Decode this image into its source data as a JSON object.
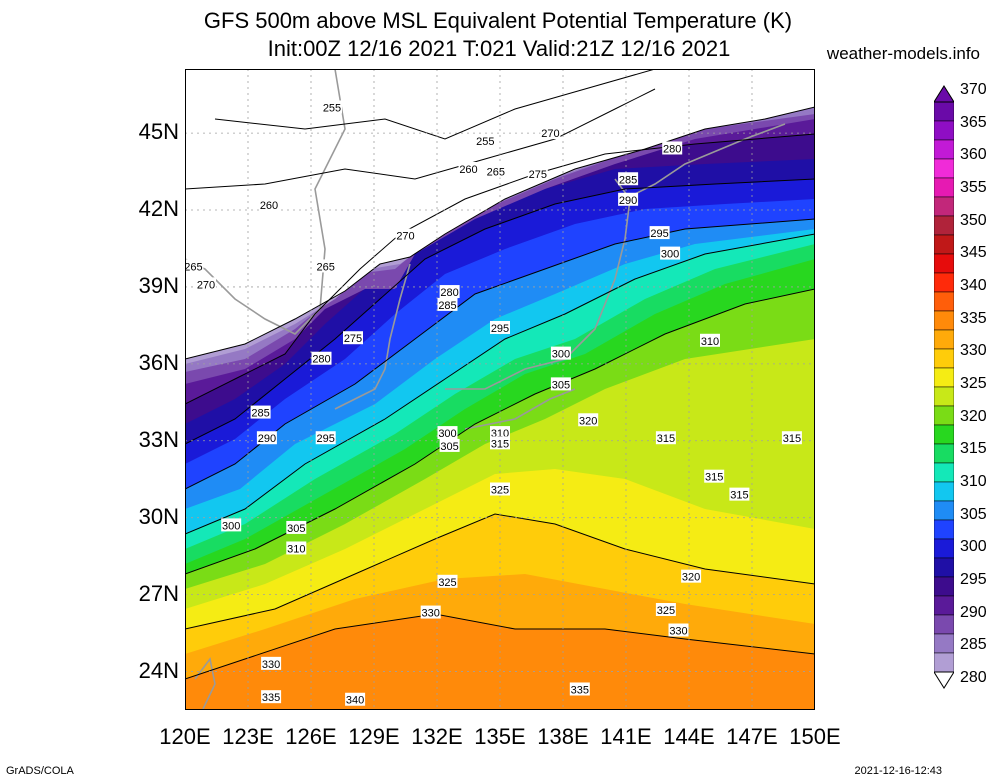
{
  "header": {
    "title_line1": "GFS 500m above MSL Equivalent Potential Temperature (K)",
    "title_line2": "Init:00Z 12/16 2021 T:021 Valid:21Z 12/16 2021",
    "site": "weather-models.info"
  },
  "map": {
    "lat_labels": [
      "45N",
      "42N",
      "39N",
      "36N",
      "33N",
      "30N",
      "27N",
      "24N"
    ],
    "lon_labels": [
      "120E",
      "123E",
      "126E",
      "129E",
      "132E",
      "135E",
      "138E",
      "141E",
      "144E",
      "147E",
      "150E"
    ],
    "lat_values": [
      45,
      42,
      39,
      36,
      33,
      30,
      27,
      24
    ],
    "lon_values": [
      120,
      123,
      126,
      129,
      132,
      135,
      138,
      141,
      144,
      147,
      150
    ],
    "lat_range": [
      22.5,
      47.5
    ],
    "lon_range": [
      120,
      150
    ],
    "contour_labels": [
      {
        "text": "255",
        "lon": 127.0,
        "lat": 46.0
      },
      {
        "text": "255",
        "lon": 134.3,
        "lat": 44.7
      },
      {
        "text": "260",
        "lon": 124.0,
        "lat": 42.2
      },
      {
        "text": "260",
        "lon": 133.5,
        "lat": 43.6
      },
      {
        "text": "265",
        "lon": 120.4,
        "lat": 39.8
      },
      {
        "text": "265",
        "lon": 126.7,
        "lat": 39.8
      },
      {
        "text": "265",
        "lon": 134.8,
        "lat": 43.5
      },
      {
        "text": "270",
        "lon": 121.0,
        "lat": 39.1
      },
      {
        "text": "270",
        "lon": 130.5,
        "lat": 41.0
      },
      {
        "text": "270",
        "lon": 137.4,
        "lat": 45.0
      },
      {
        "text": "275",
        "lon": 136.8,
        "lat": 43.4
      },
      {
        "text": "275",
        "lon": 128.0,
        "lat": 37.0
      },
      {
        "text": "280",
        "lon": 126.5,
        "lat": 36.2
      },
      {
        "text": "280",
        "lon": 132.6,
        "lat": 38.8
      },
      {
        "text": "280",
        "lon": 143.2,
        "lat": 44.4
      },
      {
        "text": "285",
        "lon": 132.5,
        "lat": 38.3
      },
      {
        "text": "285",
        "lon": 141.1,
        "lat": 43.2
      },
      {
        "text": "285",
        "lon": 123.6,
        "lat": 34.1
      },
      {
        "text": "290",
        "lon": 141.1,
        "lat": 42.4
      },
      {
        "text": "290",
        "lon": 123.9,
        "lat": 33.1
      },
      {
        "text": "295",
        "lon": 126.7,
        "lat": 33.1
      },
      {
        "text": "295",
        "lon": 135.0,
        "lat": 37.4
      },
      {
        "text": "295",
        "lon": 142.6,
        "lat": 41.1
      },
      {
        "text": "300",
        "lon": 137.9,
        "lat": 36.4
      },
      {
        "text": "300",
        "lon": 143.1,
        "lat": 40.3
      },
      {
        "text": "300",
        "lon": 132.5,
        "lat": 33.3
      },
      {
        "text": "300",
        "lon": 122.2,
        "lat": 29.7
      },
      {
        "text": "305",
        "lon": 132.6,
        "lat": 32.8
      },
      {
        "text": "305",
        "lon": 137.9,
        "lat": 35.2
      },
      {
        "text": "305",
        "lon": 125.3,
        "lat": 29.6
      },
      {
        "text": "310",
        "lon": 135.0,
        "lat": 33.3
      },
      {
        "text": "310",
        "lon": 145.0,
        "lat": 36.9
      },
      {
        "text": "310",
        "lon": 125.3,
        "lat": 28.8
      },
      {
        "text": "315",
        "lon": 135.0,
        "lat": 32.9
      },
      {
        "text": "315",
        "lon": 142.9,
        "lat": 33.1
      },
      {
        "text": "315",
        "lon": 148.9,
        "lat": 33.1
      },
      {
        "text": "315",
        "lon": 145.2,
        "lat": 31.6
      },
      {
        "text": "315",
        "lon": 146.4,
        "lat": 30.9
      },
      {
        "text": "320",
        "lon": 139.2,
        "lat": 33.8
      },
      {
        "text": "320",
        "lon": 144.1,
        "lat": 27.7
      },
      {
        "text": "325",
        "lon": 135.0,
        "lat": 31.1
      },
      {
        "text": "325",
        "lon": 132.5,
        "lat": 27.5
      },
      {
        "text": "325",
        "lon": 142.9,
        "lat": 26.4
      },
      {
        "text": "330",
        "lon": 131.7,
        "lat": 26.3
      },
      {
        "text": "330",
        "lon": 124.1,
        "lat": 24.3
      },
      {
        "text": "330",
        "lon": 143.5,
        "lat": 25.6
      },
      {
        "text": "335",
        "lon": 124.1,
        "lat": 23.0
      },
      {
        "text": "335",
        "lon": 138.8,
        "lat": 23.3
      },
      {
        "text": "340",
        "lon": 128.1,
        "lat": 22.9
      }
    ]
  },
  "colorbar": {
    "labels": [
      "370",
      "365",
      "360",
      "355",
      "350",
      "345",
      "340",
      "335",
      "330",
      "325",
      "320",
      "315",
      "310",
      "305",
      "300",
      "295",
      "290",
      "285",
      "280"
    ],
    "colors": [
      "#b19ed4",
      "#9579c4",
      "#7a49ae",
      "#5a1a99",
      "#3d0c8d",
      "#1f0fa6",
      "#1a1ad8",
      "#1f43ff",
      "#1f8cf5",
      "#12c7f0",
      "#14e8b8",
      "#18dc62",
      "#28d71f",
      "#7adc16",
      "#c8e818",
      "#f5ec14",
      "#ffcc0a",
      "#ffaa0a",
      "#ff8a0a",
      "#ff5e0a",
      "#ff2a0a",
      "#e60c0c",
      "#c01818",
      "#b0233a",
      "#c2277a",
      "#e61ab2",
      "#f02bd8",
      "#c21ad6",
      "#8f0ec4",
      "#6a0aa8"
    ]
  },
  "footer": {
    "left": "GrADS/COLA",
    "right": "2021-12-16-12:43"
  }
}
